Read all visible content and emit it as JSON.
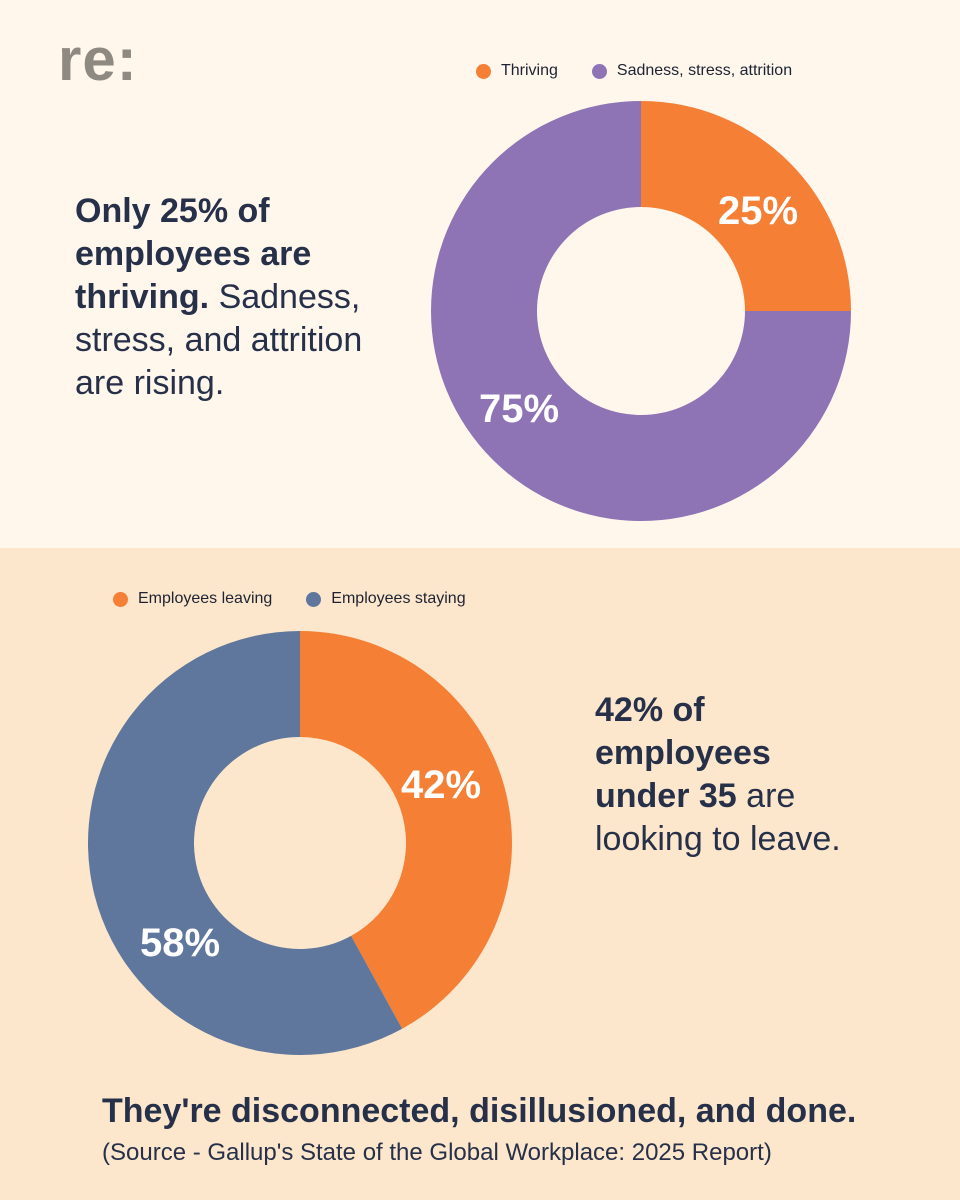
{
  "brand": {
    "logo_text": "re:"
  },
  "top_section": {
    "statement_bold": "Only 25% of employees are thriving.",
    "statement_plain": "Sadness, stress, and attrition are rising."
  },
  "bottom_section": {
    "statement_bold": "42% of employees under 35",
    "statement_plain": " are looking to leave."
  },
  "footer": {
    "headline": "They're disconnected, disillusioned, and done.",
    "source": "(Source - Gallup's State of the Global Workplace: 2025 Report)"
  },
  "colors": {
    "orange": "#f47f35",
    "purple": "#8e73b5",
    "slate": "#5f779d",
    "top_bg": "#fff6ec",
    "bottom_bg": "#fde7cc",
    "text": "#263049"
  },
  "chart_data": [
    {
      "type": "pie",
      "title": "",
      "legend": [
        "Thriving",
        "Sadness, stress, attrition"
      ],
      "legend_placement": "top-right",
      "series": [
        {
          "name": "Thriving",
          "value": 25,
          "label": "25%",
          "color": "#f47f35"
        },
        {
          "name": "Sadness, stress, attrition",
          "value": 75,
          "label": "75%",
          "color": "#8e73b5"
        }
      ]
    },
    {
      "type": "pie",
      "title": "",
      "legend": [
        "Employees leaving",
        "Employees staying"
      ],
      "legend_placement": "top-left",
      "series": [
        {
          "name": "Employees leaving",
          "value": 42,
          "label": "42%",
          "color": "#f47f35"
        },
        {
          "name": "Employees staying",
          "value": 58,
          "label": "58%",
          "color": "#5f779d"
        }
      ]
    }
  ]
}
